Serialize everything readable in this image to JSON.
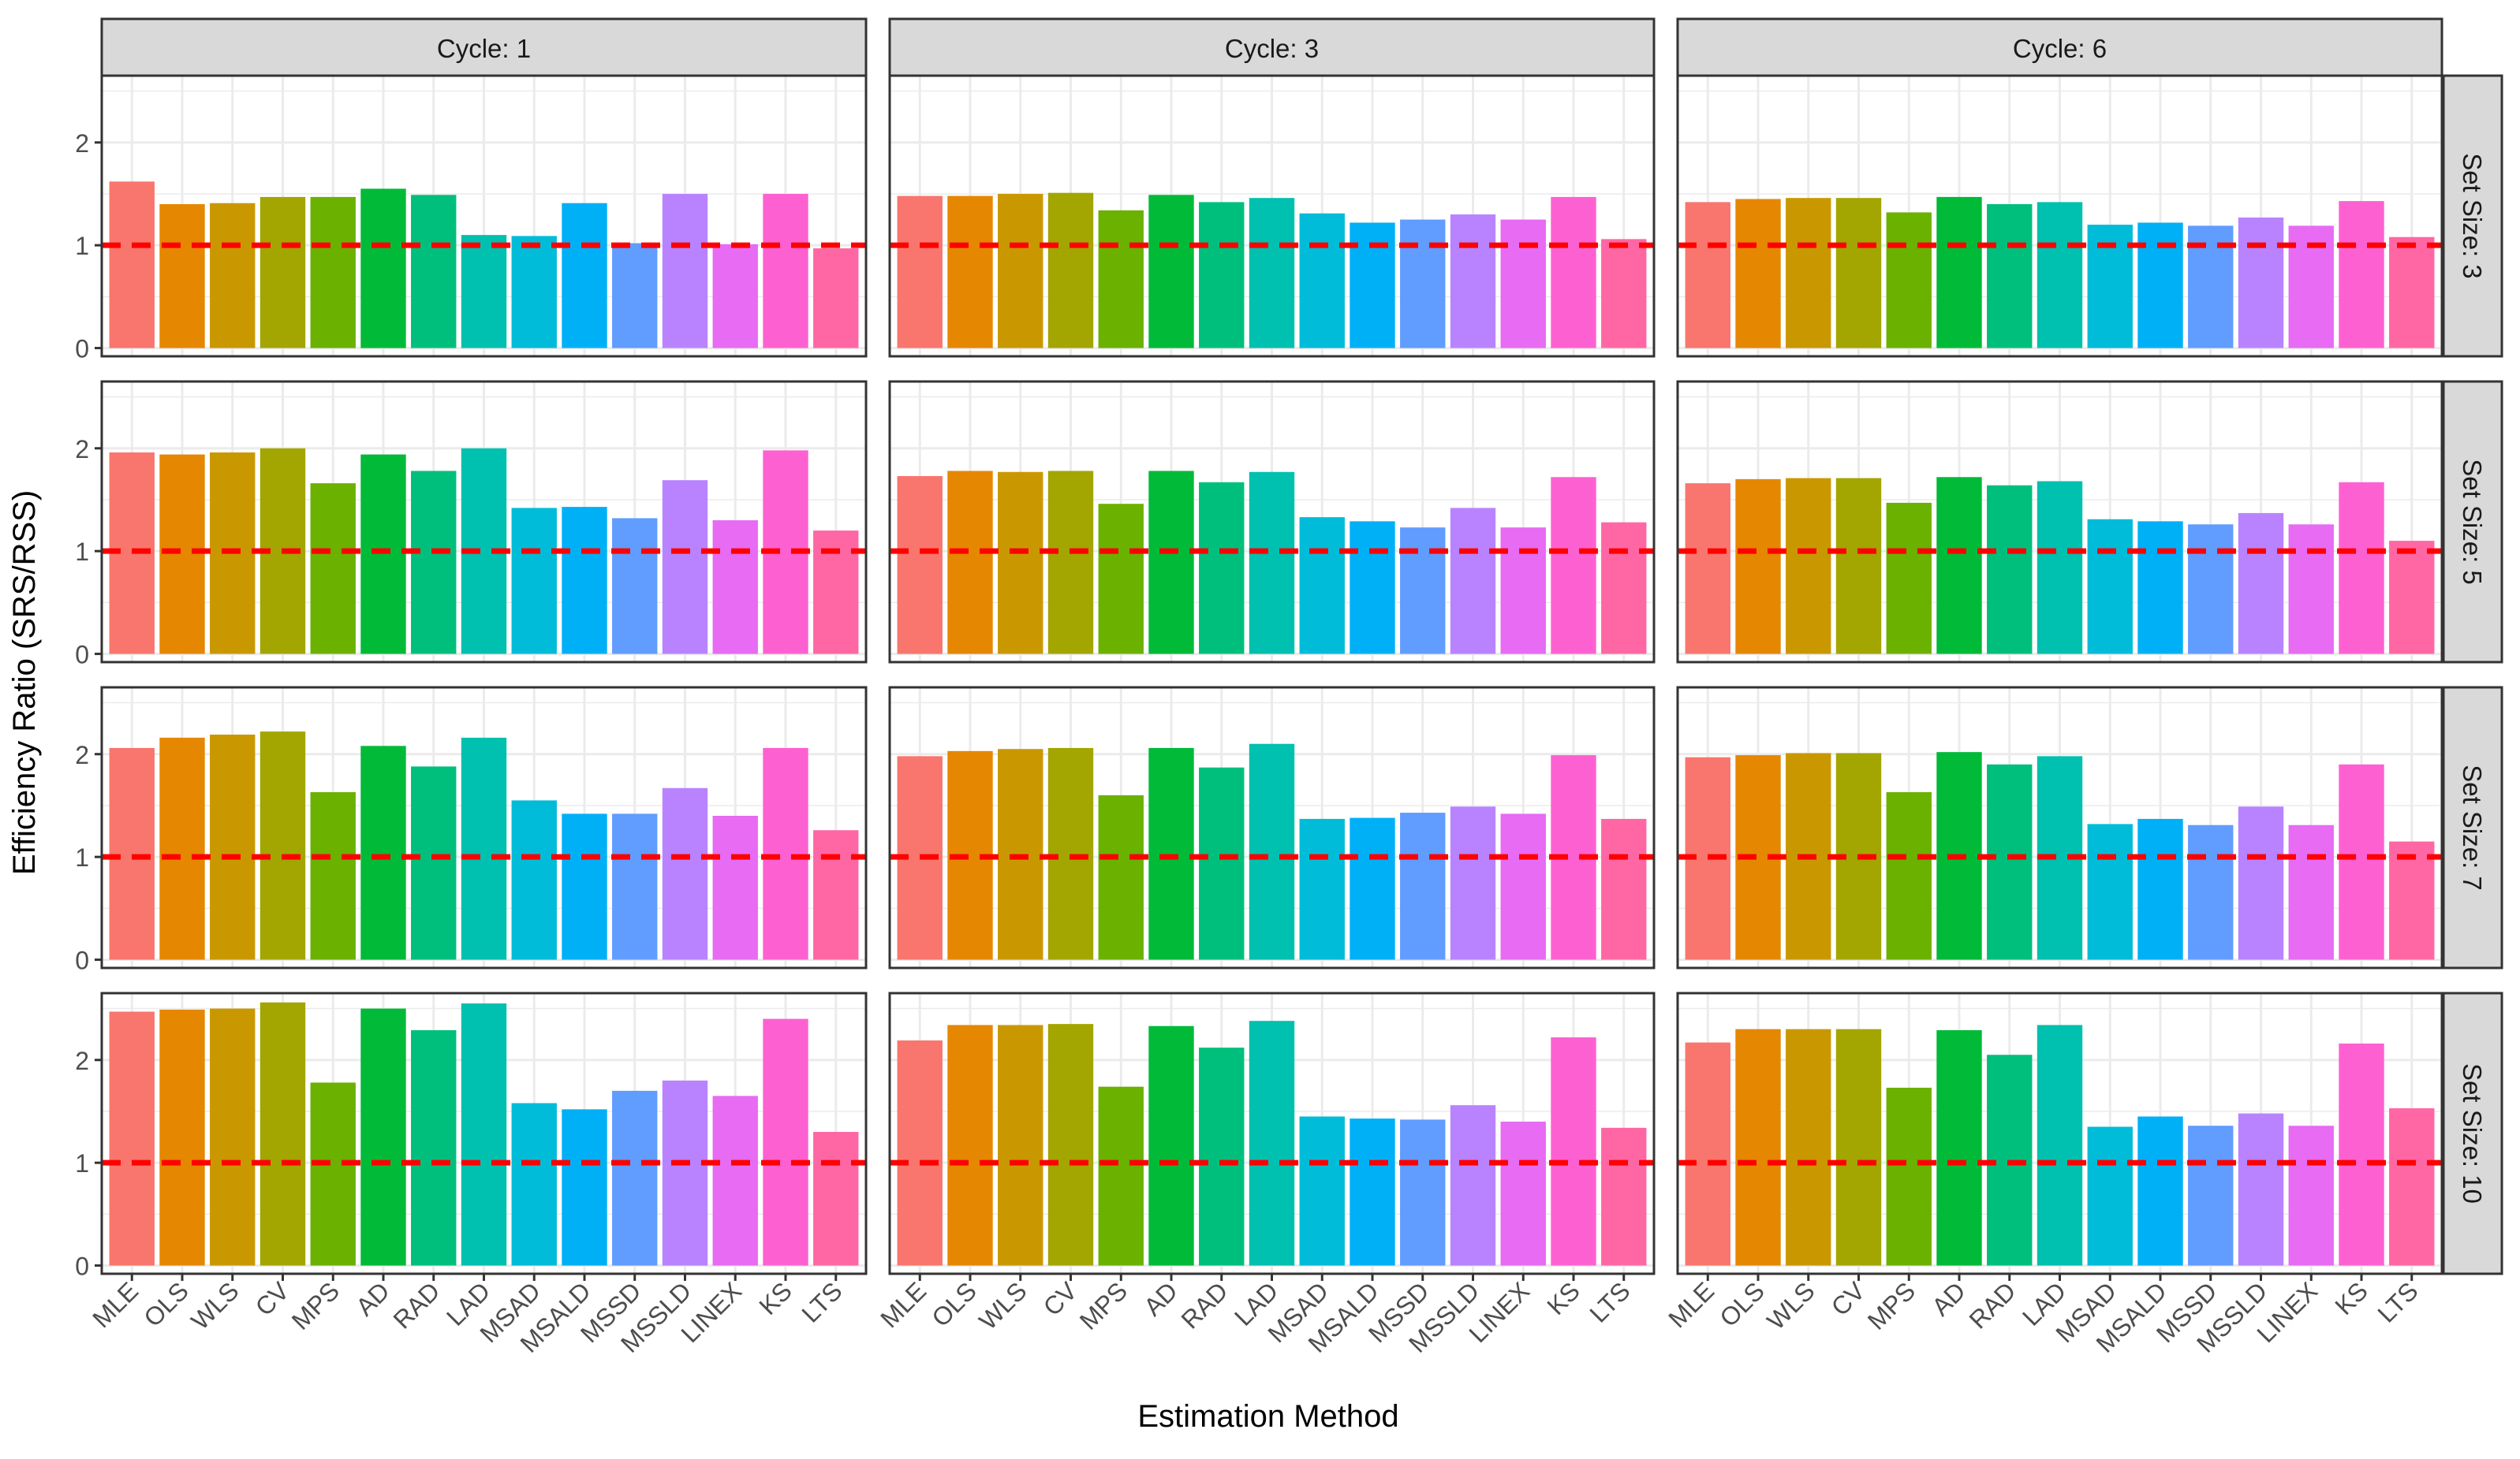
{
  "chart_data": {
    "type": "bar",
    "xlabel": "Estimation Method",
    "ylabel": "Efficiency Ratio (SRS/RSS)",
    "ylim": [
      -0.08,
      2.65
    ],
    "yticks": [
      0,
      1,
      2
    ],
    "reference_line": 1,
    "reference_color": "#ff0000",
    "grid": true,
    "legend": "none",
    "categories": [
      "MLE",
      "OLS",
      "WLS",
      "CV",
      "MPS",
      "AD",
      "RAD",
      "LAD",
      "MSAD",
      "MSALD",
      "MSSD",
      "MSSLD",
      "LINEX",
      "KS",
      "LTS"
    ],
    "colors": [
      "#F8766D",
      "#E58700",
      "#C99800",
      "#A3A500",
      "#6BB100",
      "#00BA38",
      "#00BF7D",
      "#00C0AF",
      "#00BCD8",
      "#00B0F6",
      "#619CFF",
      "#B983FF",
      "#E76BF3",
      "#FD61D1",
      "#FF67A4"
    ],
    "col_strips": [
      "Cycle: 1",
      "Cycle: 3",
      "Cycle: 6"
    ],
    "row_strips": [
      "Set Size: 3",
      "Set Size: 5",
      "Set Size: 7",
      "Set Size: 10"
    ],
    "panels": [
      [
        [
          1.62,
          1.4,
          1.41,
          1.47,
          1.47,
          1.55,
          1.49,
          1.1,
          1.09,
          1.41,
          1.02,
          1.5,
          1.01,
          1.5,
          0.97
        ],
        [
          1.48,
          1.48,
          1.5,
          1.51,
          1.34,
          1.49,
          1.42,
          1.46,
          1.31,
          1.22,
          1.25,
          1.3,
          1.25,
          1.47,
          1.06
        ],
        [
          1.42,
          1.45,
          1.46,
          1.46,
          1.32,
          1.47,
          1.4,
          1.42,
          1.2,
          1.22,
          1.19,
          1.27,
          1.19,
          1.43,
          1.08
        ]
      ],
      [
        [
          1.96,
          1.94,
          1.96,
          2.0,
          1.66,
          1.94,
          1.78,
          2.0,
          1.42,
          1.43,
          1.32,
          1.69,
          1.3,
          1.98,
          1.2
        ],
        [
          1.73,
          1.78,
          1.77,
          1.78,
          1.46,
          1.78,
          1.67,
          1.77,
          1.33,
          1.29,
          1.23,
          1.42,
          1.23,
          1.72,
          1.28
        ],
        [
          1.66,
          1.7,
          1.71,
          1.71,
          1.47,
          1.72,
          1.64,
          1.68,
          1.31,
          1.29,
          1.26,
          1.37,
          1.26,
          1.67,
          1.1
        ]
      ],
      [
        [
          2.06,
          2.16,
          2.19,
          2.22,
          1.63,
          2.08,
          1.88,
          2.16,
          1.55,
          1.42,
          1.42,
          1.67,
          1.4,
          2.06,
          1.26
        ],
        [
          1.98,
          2.03,
          2.05,
          2.06,
          1.6,
          2.06,
          1.87,
          2.1,
          1.37,
          1.38,
          1.43,
          1.49,
          1.42,
          1.99,
          1.37
        ],
        [
          1.97,
          1.99,
          2.01,
          2.01,
          1.63,
          2.02,
          1.9,
          1.98,
          1.32,
          1.37,
          1.31,
          1.49,
          1.31,
          1.9,
          1.15
        ]
      ],
      [
        [
          2.47,
          2.49,
          2.5,
          2.56,
          1.78,
          2.5,
          2.29,
          2.55,
          1.58,
          1.52,
          1.7,
          1.8,
          1.65,
          2.4,
          1.3
        ],
        [
          2.19,
          2.34,
          2.34,
          2.35,
          1.74,
          2.33,
          2.12,
          2.38,
          1.45,
          1.43,
          1.42,
          1.56,
          1.4,
          2.22,
          1.34
        ],
        [
          2.17,
          2.3,
          2.3,
          2.3,
          1.73,
          2.29,
          2.05,
          2.34,
          1.35,
          1.45,
          1.36,
          1.48,
          1.36,
          2.16,
          1.53
        ]
      ]
    ]
  }
}
